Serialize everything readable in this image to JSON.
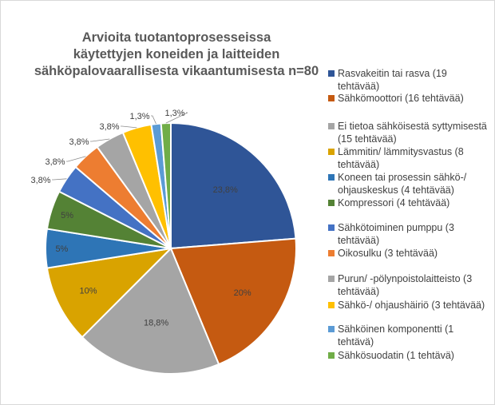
{
  "chart_data": {
    "type": "pie",
    "title": [
      "Arvioita tuotantoprosesseissa",
      "käytettyjen koneiden ja laitteiden",
      "sähköpalovaarallisesta vikaantumisesta n=80"
    ],
    "legend_position": "right",
    "slices": [
      {
        "label": "Rasvakeitin tai rasva (19 tehtävää)",
        "value": 19,
        "percent_label": "23,8%",
        "color": "#2f5597"
      },
      {
        "label": "Sähkömoottori (16 tehtävää)",
        "value": 16,
        "percent_label": "20%",
        "color": "#c55a11"
      },
      {
        "label": "Ei tietoa sähköisestä syttymisestä (15 tehtävää)",
        "value": 15,
        "percent_label": "18,8%",
        "color": "#a5a5a5"
      },
      {
        "label": "Lämmitin/ lämmitysvastus (8 tehtävää)",
        "value": 8,
        "percent_label": "10%",
        "color": "#d9a300"
      },
      {
        "label": "Koneen tai prosessin sähkö-/ ohjauskeskus (4 tehtävää)",
        "value": 4,
        "percent_label": "5%",
        "color": "#2e75b6"
      },
      {
        "label": "Kompressori (4 tehtävää)",
        "value": 4,
        "percent_label": "5%",
        "color": "#548235"
      },
      {
        "label": "Sähkötoiminen pumppu (3 tehtävää)",
        "value": 3,
        "percent_label": "3,8%",
        "color": "#4472c4"
      },
      {
        "label": "Oikosulku (3 tehtävää)",
        "value": 3,
        "percent_label": "3,8%",
        "color": "#ed7d31"
      },
      {
        "label": "Purun/ -pölynpoistolaitteisto (3 tehtävää)",
        "value": 3,
        "percent_label": "3,8%",
        "color": "#a5a5a5"
      },
      {
        "label": "Sähkö-/ ohjaushäiriö (3 tehtävää)",
        "value": 3,
        "percent_label": "3,8%",
        "color": "#ffc000"
      },
      {
        "label": "Sähköinen komponentti (1 tehtävä)",
        "value": 1,
        "percent_label": "1,3%",
        "color": "#5b9bd5"
      },
      {
        "label": "Sähkösuodatin (1 tehtävä)",
        "value": 1,
        "percent_label": "1,3%",
        "color": "#70ad47"
      }
    ]
  }
}
